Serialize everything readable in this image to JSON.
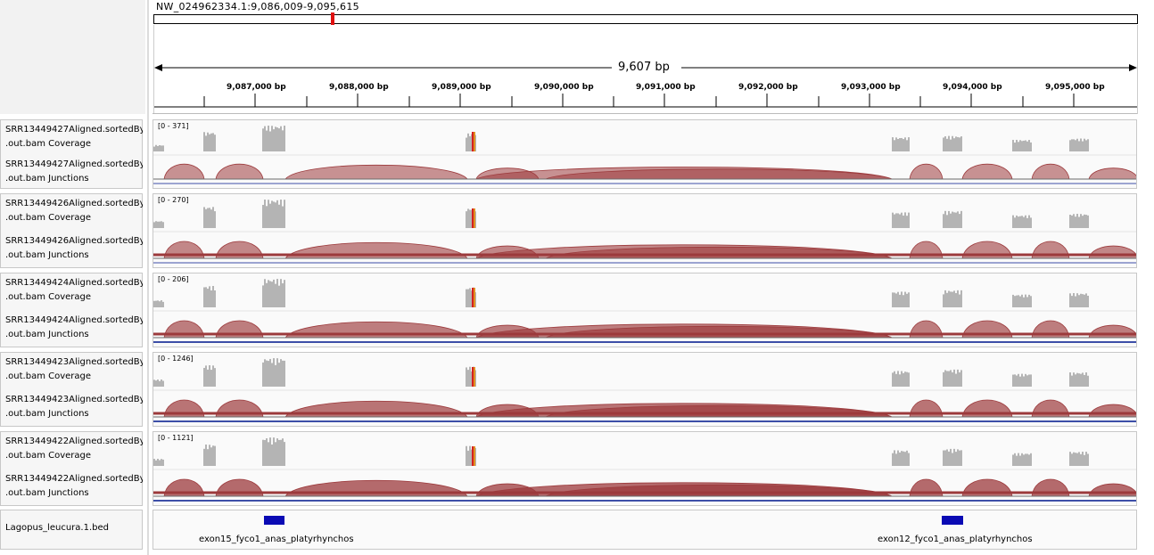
{
  "locus": "NW_024962334.1:9,086,009-9,095,615",
  "span_label": "9,607 bp",
  "ruler_ticks": [
    "9,087,000 bp",
    "9,088,000 bp",
    "9,089,000 bp",
    "9,090,000 bp",
    "9,091,000 bp",
    "9,092,000 bp",
    "9,093,000 bp",
    "9,094,000 bp",
    "9,095,000 bp"
  ],
  "samples": [
    {
      "coverage_label": "SRR13449427Aligned.sortedByCoord.out.bam Coverage",
      "junction_label": "SRR13449427Aligned.sortedByCoord.out.bam Junctions",
      "coverage_line1": "SRR13449427Aligned.sortedByCo",
      "junction_line1": "SRR13449427Aligned.sortedByCo",
      "coverage_line2": ".out.bam Coverage",
      "junction_line2": ".out.bam Junctions",
      "range": "[0 - 371]"
    },
    {
      "coverage_label": "SRR13449426Aligned.sortedByCoord.out.bam Coverage",
      "junction_label": "SRR13449426Aligned.sortedByCoord.out.bam Junctions",
      "coverage_line1": "SRR13449426Aligned.sortedByCo",
      "junction_line1": "SRR13449426Aligned.sortedByCo",
      "coverage_line2": ".out.bam Coverage",
      "junction_line2": ".out.bam Junctions",
      "range": "[0 - 270]"
    },
    {
      "coverage_label": "SRR13449424Aligned.sortedByCoord.out.bam Coverage",
      "junction_label": "SRR13449424Aligned.sortedByCoord.out.bam Junctions",
      "coverage_line1": "SRR13449424Aligned.sortedByCo",
      "junction_line1": "SRR13449424Aligned.sortedByCo",
      "coverage_line2": ".out.bam Coverage",
      "junction_line2": ".out.bam Junctions",
      "range": "[0 - 206]"
    },
    {
      "coverage_label": "SRR13449423Aligned.sortedByCoord.out.bam Coverage",
      "junction_label": "SRR13449423Aligned.sortedByCoord.out.bam Junctions",
      "coverage_line1": "SRR13449423Aligned.sortedByCo",
      "junction_line1": "SRR13449423Aligned.sortedByCo",
      "coverage_line2": ".out.bam Coverage",
      "junction_line2": ".out.bam Junctions",
      "range": "[0 - 1246]"
    },
    {
      "coverage_label": "SRR13449422Aligned.sortedByCoord.out.bam Coverage",
      "junction_label": "SRR13449422Aligned.sortedByCoord.out.bam Junctions",
      "coverage_line1": "SRR13449422Aligned.sortedByCo",
      "junction_line1": "SRR13449422Aligned.sortedByCo",
      "coverage_line2": ".out.bam Coverage",
      "junction_line2": ".out.bam Junctions",
      "range": "[0 - 1121]"
    }
  ],
  "feature_track": {
    "label": "Lagopus_leucura.1.bed",
    "features": [
      {
        "name": "exon15_fyco1_anas_platyrhynchos"
      },
      {
        "name": "exon12_fyco1_anas_platyrhynchos"
      }
    ]
  },
  "colors": {
    "coverage": "#b4b4b4",
    "junction_plus": "#9c3a3c",
    "junction_minus": "#3d4fa8",
    "feature": "#0a0ab4",
    "ideogram_marker": "#e01010",
    "snp_red": "#d42020",
    "snp_orange": "#e09020"
  }
}
